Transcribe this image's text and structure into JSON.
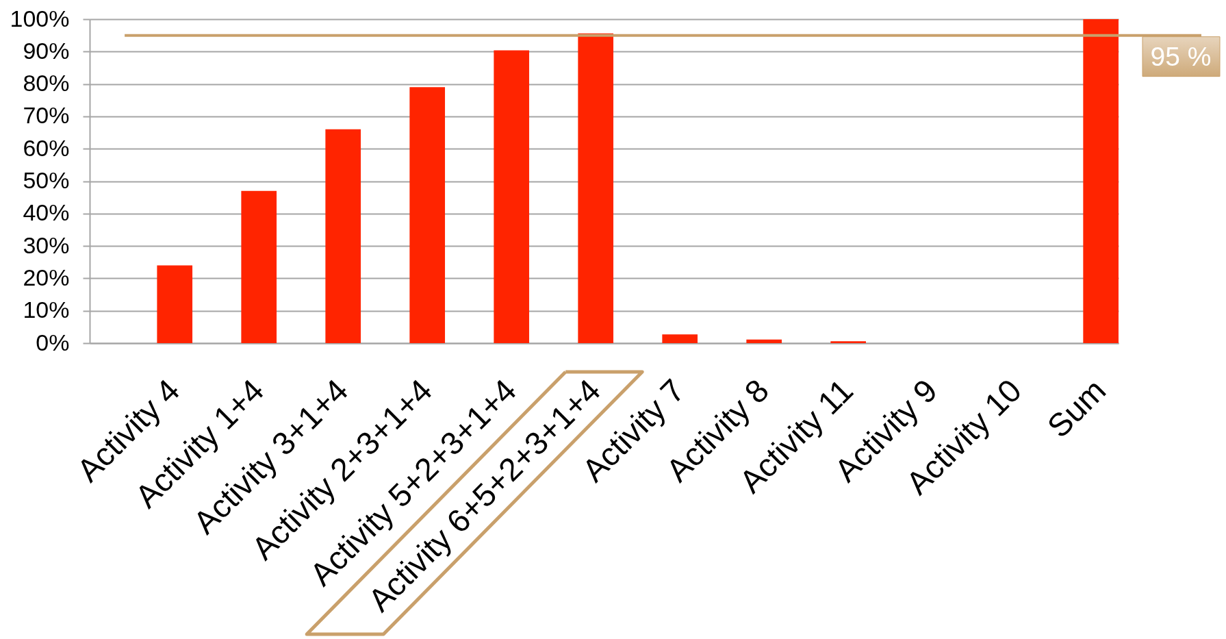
{
  "chart_data": {
    "type": "bar",
    "categories": [
      "Activity 4",
      "Activity 1+4",
      "Activity 3+1+4",
      "Activity 2+3+1+4",
      "Activity 5+2+3+1+4",
      "Activity 6+5+2+3+1+4",
      "Activity 7",
      "Activity 8",
      "Activity 11",
      "Activity 9",
      "Activity 10",
      "Sum"
    ],
    "values": [
      24,
      47,
      66,
      79,
      90.4,
      95.6,
      2.7,
      1.1,
      0.6,
      0,
      0,
      100
    ],
    "color": "#ff2400",
    "ylim": [
      0,
      100
    ],
    "yticks": [
      {
        "value": 0,
        "label": "0%"
      },
      {
        "value": 10,
        "label": "10%"
      },
      {
        "value": 20,
        "label": "20%"
      },
      {
        "value": 30,
        "label": "30%"
      },
      {
        "value": 40,
        "label": "40%"
      },
      {
        "value": 50,
        "label": "50%"
      },
      {
        "value": 60,
        "label": "60%"
      },
      {
        "value": 70,
        "label": "70%"
      },
      {
        "value": 80,
        "label": "80%"
      },
      {
        "value": 90,
        "label": "90%"
      },
      {
        "value": 100,
        "label": "100%"
      }
    ],
    "grid": "y",
    "ref_lines": [
      {
        "axis": "y",
        "value": 95,
        "label": "95 %",
        "color": "#c9a06b"
      }
    ]
  }
}
